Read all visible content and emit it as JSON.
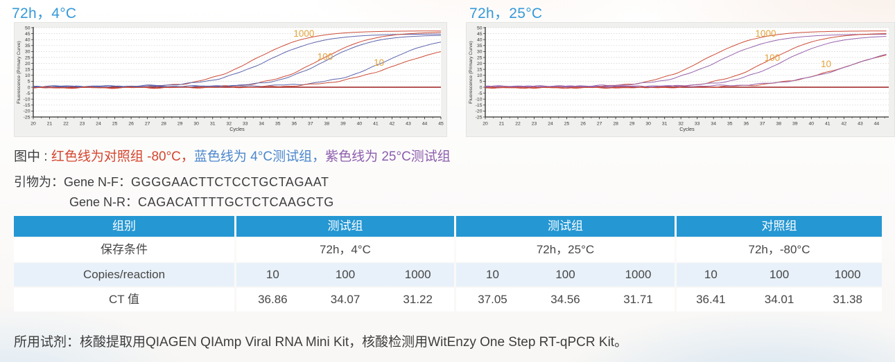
{
  "colors": {
    "title_blue": "#3599d8",
    "table_header_bg": "#2597d3",
    "table_alt_row_bg": "#e8f1f9",
    "legend_red": "#d4452e",
    "legend_blue": "#4c87cd",
    "legend_purple": "#8c5dad",
    "curve_red": "#cd4a35",
    "curve_blue": "#5c63aa",
    "curve_purple": "#9763ac",
    "curve_label_orange": "#e3a33c",
    "text": "#3d3d3d"
  },
  "chart_data": [
    {
      "type": "line",
      "title": "72h，4°C",
      "xlabel": "Cycles",
      "ylabel": "Fluorescence (Primary Curve)",
      "xmin": 20,
      "xmax": 45,
      "ymin": -25,
      "ymax": 50,
      "y_tick_step": 5,
      "x_tick_step": 1,
      "grid": "horizontal-dotted",
      "note": "red = -80°C control, blue = 4°C test group; sigmoid amplification curves per copies/reaction",
      "threshold_line": {
        "y": 0,
        "color": "#9b1c1c"
      },
      "curves": [
        {
          "name": "control-1000",
          "color": "#cd4a35",
          "mid": 33.6,
          "k": 0.6,
          "plateau": 47.5,
          "b": -0.2
        },
        {
          "name": "test4C-1000",
          "color": "#5c63aa",
          "mid": 34.4,
          "k": 0.58,
          "plateau": 44.0,
          "b": 0.7
        },
        {
          "name": "control-100",
          "color": "#cd4a35",
          "mid": 37.6,
          "k": 0.62,
          "plateau": 47.0,
          "b": -0.5
        },
        {
          "name": "test4C-100",
          "color": "#5c63aa",
          "mid": 37.9,
          "k": 0.66,
          "plateau": 43.5,
          "b": 0.4
        },
        {
          "name": "test4C-10",
          "color": "#5c63aa",
          "mid": 41.6,
          "k": 0.6,
          "plateau": 42.0,
          "b": 0.8
        },
        {
          "name": "control-10",
          "color": "#cd4a35",
          "mid": 42.3,
          "k": 0.5,
          "plateau": 38.0,
          "b": -0.3
        }
      ],
      "labels": [
        {
          "text": "1000",
          "x": 36.6,
          "y": 42.5
        },
        {
          "text": "100",
          "x": 37.9,
          "y": 23
        },
        {
          "text": "10",
          "x": 41.2,
          "y": 18
        }
      ]
    },
    {
      "type": "line",
      "title": "72h，25°C",
      "xlabel": "Cycles",
      "ylabel": "Fluorescence (Primary Curve)",
      "xmin": 20,
      "xmax": 44.75,
      "ymin": -25,
      "ymax": 50,
      "y_tick_step": 5,
      "x_tick_step": 1,
      "grid": "horizontal-dotted",
      "note": "red = -80°C control, purple = 25°C test group; right edge of plot clipped at image border",
      "threshold_line": {
        "y": 0,
        "color": "#9b1c1c"
      },
      "curves": [
        {
          "name": "control-1000",
          "color": "#cd4a35",
          "mid": 33.5,
          "k": 0.6,
          "plateau": 47.5,
          "b": -0.2
        },
        {
          "name": "test25C-1000",
          "color": "#9763ac",
          "mid": 34.4,
          "k": 0.58,
          "plateau": 44.0,
          "b": 0.6
        },
        {
          "name": "control-100",
          "color": "#cd4a35",
          "mid": 37.4,
          "k": 0.62,
          "plateau": 46.0,
          "b": -0.4
        },
        {
          "name": "test25C-100",
          "color": "#9763ac",
          "mid": 38.3,
          "k": 0.62,
          "plateau": 43.0,
          "b": 0.5
        },
        {
          "name": "control-10",
          "color": "#cd4a35",
          "mid": 42.2,
          "k": 0.48,
          "plateau": 36.0,
          "b": -0.3
        },
        {
          "name": "test25C-10",
          "color": "#9763ac",
          "mid": 42.6,
          "k": 0.5,
          "plateau": 37.0,
          "b": 0.7
        }
      ],
      "labels": [
        {
          "text": "1000",
          "x": 37.2,
          "y": 42.5
        },
        {
          "text": "100",
          "x": 37.6,
          "y": 22
        },
        {
          "text": "10",
          "x": 40.9,
          "y": 17
        }
      ]
    }
  ],
  "legend": {
    "prefix": "图中 : ",
    "red_text": "红色线为对照组 -80°C，",
    "blue_text": "蓝色线为 4°C测试组，",
    "purple_text": "紫色线为 25°C测试组"
  },
  "primers": {
    "label": "引物为：",
    "f_name": "Gene N-F：",
    "f_seq": "GGGGAACTTCTCCTGCTAGAAT",
    "r_name": "Gene N-R：",
    "r_seq": "CAGACATTTTGCTCTCAAGCTG"
  },
  "table": {
    "header": [
      "组别",
      "测试组",
      "测试组",
      "对照组"
    ],
    "condition_label": "保存条件",
    "conditions": [
      "72h，4°C",
      "72h，25°C",
      "72h，-80°C"
    ],
    "copies_label": "Copies/reaction",
    "copies": [
      "10",
      "100",
      "1000",
      "10",
      "100",
      "1000",
      "10",
      "100",
      "1000"
    ],
    "ct_label": "CT 值",
    "ct": [
      "36.86",
      "34.07",
      "31.22",
      "37.05",
      "34.56",
      "31.71",
      "36.41",
      "34.01",
      "31.38"
    ]
  },
  "reagent_text": "所用试剂：核酸提取用QIAGEN QIAmp Viral RNA Mini Kit，核酸检测用WitEnzy One Step RT-qPCR Kit。"
}
